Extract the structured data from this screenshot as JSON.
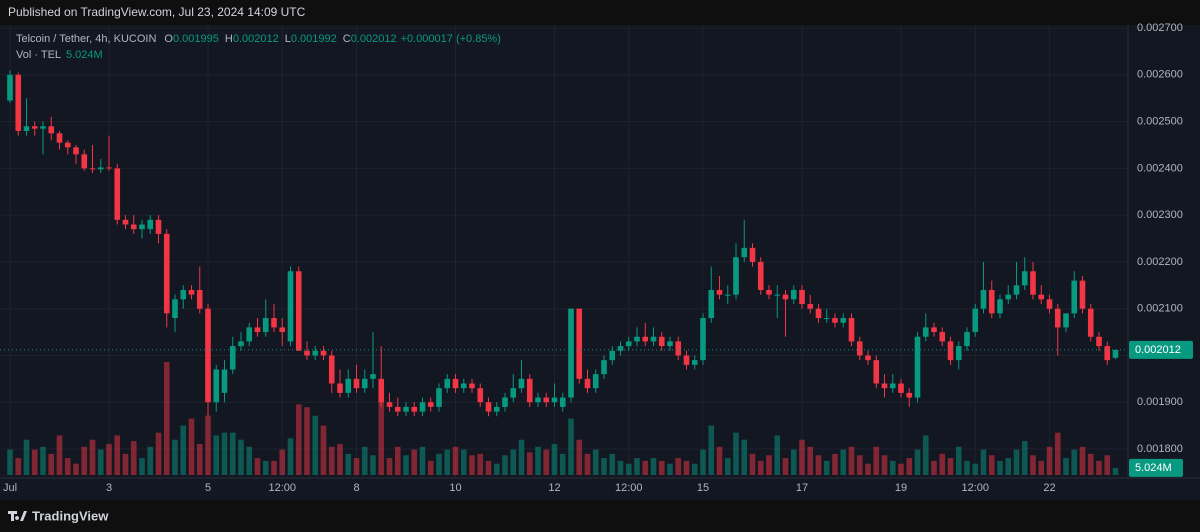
{
  "chart_data": {
    "type": "candlestick",
    "published": "Published on TradingView.com, Jul 23, 2024 14:09 UTC",
    "symbol": "Telcoin / Tether, 4h, KUCOIN",
    "change": "+0.000017 (+0.85%)",
    "volume_title": "Vol · TEL",
    "volume_label": "5.024M",
    "brand": "TradingView",
    "up_color": "#089981",
    "down_color": "#f23645",
    "grid": true,
    "ylim": [
      0.001738,
      0.00276
    ],
    "yticks": [
      {
        "value": 0.0018,
        "label": "0.001800"
      },
      {
        "value": 0.0019,
        "label": "0.001900"
      },
      {
        "value": 0.002,
        "label": "0.002000"
      },
      {
        "value": 0.0021,
        "label": "0.002100"
      },
      {
        "value": 0.0022,
        "label": "0.002200"
      },
      {
        "value": 0.0023,
        "label": "0.002300"
      },
      {
        "value": 0.0024,
        "label": "0.002400"
      },
      {
        "value": 0.0025,
        "label": "0.002500"
      },
      {
        "value": 0.0026,
        "label": "0.002600"
      },
      {
        "value": 0.0027,
        "label": "0.002700"
      }
    ],
    "xticks": [
      {
        "value": 0,
        "label": "Jul"
      },
      {
        "value": 12,
        "label": "3"
      },
      {
        "value": 24,
        "label": "5"
      },
      {
        "value": 33,
        "label": "12:00"
      },
      {
        "value": 42,
        "label": "8"
      },
      {
        "value": 54,
        "label": "10"
      },
      {
        "value": 66,
        "label": "12"
      },
      {
        "value": 75,
        "label": "12:00"
      },
      {
        "value": 84,
        "label": "15"
      },
      {
        "value": 96,
        "label": "17"
      },
      {
        "value": 108,
        "label": "19"
      },
      {
        "value": 117,
        "label": "12:00"
      },
      {
        "value": 126,
        "label": "22"
      }
    ],
    "volume_lim": [
      0,
      85
    ],
    "candles": [
      [
        0.002545,
        0.00261,
        0.00254,
        0.0026
      ],
      [
        0.0026,
        0.002605,
        0.00247,
        0.00248
      ],
      [
        0.00248,
        0.00255,
        0.00247,
        0.00249
      ],
      [
        0.00249,
        0.0025,
        0.00247,
        0.002485
      ],
      [
        0.002485,
        0.0025,
        0.00243,
        0.00249
      ],
      [
        0.00249,
        0.00251,
        0.00246,
        0.002475
      ],
      [
        0.002475,
        0.00248,
        0.00244,
        0.002455
      ],
      [
        0.002455,
        0.00246,
        0.00243,
        0.002445
      ],
      [
        0.002445,
        0.00245,
        0.00241,
        0.00243
      ],
      [
        0.00243,
        0.00244,
        0.002395,
        0.0024
      ],
      [
        0.0024,
        0.00245,
        0.00239,
        0.002398
      ],
      [
        0.002398,
        0.00242,
        0.00239,
        0.002402
      ],
      [
        0.002402,
        0.00247,
        0.002395,
        0.0024
      ],
      [
        0.0024,
        0.00241,
        0.00228,
        0.00229
      ],
      [
        0.00229,
        0.0023,
        0.00227,
        0.00228
      ],
      [
        0.00228,
        0.0023,
        0.00226,
        0.00227
      ],
      [
        0.00227,
        0.00229,
        0.00225,
        0.00228
      ],
      [
        0.00227,
        0.0023,
        0.00226,
        0.00229
      ],
      [
        0.00229,
        0.0023,
        0.00224,
        0.00226
      ],
      [
        0.00226,
        0.00227,
        0.00206,
        0.00209
      ],
      [
        0.00208,
        0.00213,
        0.00205,
        0.00212
      ],
      [
        0.00212,
        0.00215,
        0.0021,
        0.00214
      ],
      [
        0.00214,
        0.00215,
        0.00212,
        0.00213
      ],
      [
        0.00214,
        0.00219,
        0.00209,
        0.0021
      ],
      [
        0.0021,
        0.00211,
        0.00187,
        0.0019
      ],
      [
        0.0019,
        0.00198,
        0.00188,
        0.00197
      ],
      [
        0.00192,
        0.00199,
        0.0019,
        0.00197
      ],
      [
        0.00197,
        0.00204,
        0.00196,
        0.00202
      ],
      [
        0.00202,
        0.00205,
        0.00201,
        0.00203
      ],
      [
        0.00203,
        0.00207,
        0.00202,
        0.00206
      ],
      [
        0.00206,
        0.00208,
        0.00204,
        0.00205
      ],
      [
        0.00205,
        0.00212,
        0.00204,
        0.00208
      ],
      [
        0.00208,
        0.00211,
        0.00205,
        0.00206
      ],
      [
        0.00206,
        0.00208,
        0.00202,
        0.00205
      ],
      [
        0.00203,
        0.00219,
        0.00202,
        0.00218
      ],
      [
        0.00218,
        0.00219,
        0.00201,
        0.00201
      ],
      [
        0.00201,
        0.00203,
        0.00199,
        0.002
      ],
      [
        0.002,
        0.00202,
        0.00199,
        0.00201
      ],
      [
        0.00201,
        0.00202,
        0.00199,
        0.002
      ],
      [
        0.002,
        0.00201,
        0.00192,
        0.00194
      ],
      [
        0.00194,
        0.00197,
        0.00191,
        0.00192
      ],
      [
        0.00192,
        0.00197,
        0.00191,
        0.00195
      ],
      [
        0.00195,
        0.00198,
        0.00192,
        0.00193
      ],
      [
        0.00193,
        0.00197,
        0.00192,
        0.00195
      ],
      [
        0.00195,
        0.00205,
        0.00193,
        0.00196
      ],
      [
        0.00195,
        0.00202,
        0.00189,
        0.0019
      ],
      [
        0.0019,
        0.00192,
        0.00188,
        0.00189
      ],
      [
        0.00189,
        0.00191,
        0.00187,
        0.00188
      ],
      [
        0.00188,
        0.0019,
        0.00187,
        0.00189
      ],
      [
        0.00189,
        0.0019,
        0.00187,
        0.00188
      ],
      [
        0.00188,
        0.00191,
        0.00187,
        0.0019
      ],
      [
        0.0019,
        0.00191,
        0.00188,
        0.00189
      ],
      [
        0.00189,
        0.00194,
        0.00188,
        0.00193
      ],
      [
        0.00193,
        0.00196,
        0.00192,
        0.00195
      ],
      [
        0.00195,
        0.00196,
        0.00192,
        0.00193
      ],
      [
        0.00193,
        0.00195,
        0.00192,
        0.00194
      ],
      [
        0.00194,
        0.00195,
        0.00192,
        0.00193
      ],
      [
        0.00193,
        0.00194,
        0.00189,
        0.0019
      ],
      [
        0.0019,
        0.00191,
        0.00187,
        0.00188
      ],
      [
        0.00188,
        0.0019,
        0.00187,
        0.00189
      ],
      [
        0.00189,
        0.00192,
        0.00188,
        0.00191
      ],
      [
        0.00191,
        0.00196,
        0.0019,
        0.00193
      ],
      [
        0.00193,
        0.00199,
        0.00192,
        0.00195
      ],
      [
        0.00195,
        0.00196,
        0.00189,
        0.0019
      ],
      [
        0.0019,
        0.00192,
        0.00189,
        0.00191
      ],
      [
        0.00191,
        0.00192,
        0.00189,
        0.0019
      ],
      [
        0.0019,
        0.00194,
        0.00189,
        0.00191
      ],
      [
        0.00189,
        0.00192,
        0.00188,
        0.00191
      ],
      [
        0.00191,
        0.0021,
        0.0019,
        0.0021
      ],
      [
        0.0021,
        0.0021,
        0.00194,
        0.00195
      ],
      [
        0.00195,
        0.00197,
        0.00192,
        0.00193
      ],
      [
        0.00193,
        0.00197,
        0.00192,
        0.00196
      ],
      [
        0.00196,
        0.002,
        0.00195,
        0.00199
      ],
      [
        0.00199,
        0.00202,
        0.00198,
        0.00201
      ],
      [
        0.00201,
        0.00203,
        0.002,
        0.00202
      ],
      [
        0.00202,
        0.00204,
        0.00201,
        0.00203
      ],
      [
        0.00203,
        0.00206,
        0.00202,
        0.00204
      ],
      [
        0.00204,
        0.00207,
        0.00202,
        0.00203
      ],
      [
        0.00203,
        0.00206,
        0.00202,
        0.00204
      ],
      [
        0.00204,
        0.00205,
        0.00201,
        0.00202
      ],
      [
        0.00202,
        0.00204,
        0.00201,
        0.00203
      ],
      [
        0.00203,
        0.00204,
        0.00199,
        0.002
      ],
      [
        0.002,
        0.00201,
        0.00197,
        0.00198
      ],
      [
        0.00198,
        0.002,
        0.00197,
        0.00199
      ],
      [
        0.00199,
        0.00209,
        0.00198,
        0.00208
      ],
      [
        0.00208,
        0.00219,
        0.00207,
        0.00214
      ],
      [
        0.00214,
        0.00217,
        0.00212,
        0.00213
      ],
      [
        0.00213,
        0.00215,
        0.00211,
        0.00213
      ],
      [
        0.00213,
        0.00224,
        0.00212,
        0.00221
      ],
      [
        0.00221,
        0.00229,
        0.0022,
        0.00223
      ],
      [
        0.00223,
        0.00224,
        0.00219,
        0.0022
      ],
      [
        0.0022,
        0.00221,
        0.00213,
        0.00214
      ],
      [
        0.00214,
        0.00215,
        0.00212,
        0.00213
      ],
      [
        0.00213,
        0.00215,
        0.00208,
        0.00213
      ],
      [
        0.00213,
        0.00214,
        0.00204,
        0.00212
      ],
      [
        0.00212,
        0.00215,
        0.00211,
        0.00214
      ],
      [
        0.00214,
        0.00215,
        0.0021,
        0.00211
      ],
      [
        0.00211,
        0.00213,
        0.00209,
        0.0021
      ],
      [
        0.0021,
        0.00211,
        0.00207,
        0.00208
      ],
      [
        0.00208,
        0.0021,
        0.00207,
        0.00208
      ],
      [
        0.00208,
        0.00209,
        0.00206,
        0.00207
      ],
      [
        0.00207,
        0.00209,
        0.00206,
        0.00208
      ],
      [
        0.00208,
        0.00209,
        0.00202,
        0.00203
      ],
      [
        0.00203,
        0.00204,
        0.00199,
        0.002
      ],
      [
        0.002,
        0.00201,
        0.00198,
        0.00199
      ],
      [
        0.00199,
        0.002,
        0.00193,
        0.00194
      ],
      [
        0.00194,
        0.00196,
        0.00191,
        0.00193
      ],
      [
        0.00193,
        0.00196,
        0.00192,
        0.00194
      ],
      [
        0.00194,
        0.00195,
        0.00191,
        0.00192
      ],
      [
        0.00192,
        0.00193,
        0.00189,
        0.00191
      ],
      [
        0.00191,
        0.00205,
        0.0019,
        0.00204
      ],
      [
        0.00204,
        0.00209,
        0.00203,
        0.00206
      ],
      [
        0.00206,
        0.00207,
        0.00204,
        0.00205
      ],
      [
        0.00205,
        0.00206,
        0.00202,
        0.00203
      ],
      [
        0.00203,
        0.00204,
        0.00198,
        0.00199
      ],
      [
        0.00199,
        0.00203,
        0.00197,
        0.00202
      ],
      [
        0.00202,
        0.00206,
        0.00201,
        0.00205
      ],
      [
        0.00205,
        0.00211,
        0.00204,
        0.0021
      ],
      [
        0.0021,
        0.0022,
        0.00209,
        0.00214
      ],
      [
        0.00214,
        0.00216,
        0.00208,
        0.00209
      ],
      [
        0.00209,
        0.00213,
        0.00208,
        0.00212
      ],
      [
        0.00212,
        0.00215,
        0.00211,
        0.00213
      ],
      [
        0.00213,
        0.0022,
        0.00212,
        0.00215
      ],
      [
        0.00215,
        0.00221,
        0.00214,
        0.00218
      ],
      [
        0.00218,
        0.0022,
        0.00212,
        0.00213
      ],
      [
        0.00213,
        0.00215,
        0.00211,
        0.00212
      ],
      [
        0.00212,
        0.00213,
        0.00209,
        0.0021
      ],
      [
        0.0021,
        0.00211,
        0.002,
        0.00206
      ],
      [
        0.00206,
        0.00209,
        0.00205,
        0.00209
      ],
      [
        0.00209,
        0.00218,
        0.00208,
        0.00216
      ],
      [
        0.00216,
        0.00217,
        0.00209,
        0.0021
      ],
      [
        0.0021,
        0.00211,
        0.00203,
        0.00204
      ],
      [
        0.00204,
        0.00205,
        0.00201,
        0.00202
      ],
      [
        0.00202,
        0.00203,
        0.00198,
        0.00199
      ],
      [
        0.001995,
        0.002012,
        0.001992,
        0.002012
      ]
    ],
    "volumes": [
      18,
      12,
      25,
      18,
      20,
      15,
      28,
      12,
      8,
      20,
      25,
      18,
      22,
      28,
      15,
      24,
      12,
      20,
      30,
      80,
      25,
      35,
      40,
      22,
      42,
      28,
      30,
      30,
      25,
      20,
      12,
      10,
      10,
      18,
      26,
      50,
      48,
      42,
      35,
      20,
      22,
      15,
      12,
      20,
      14,
      55,
      12,
      20,
      14,
      18,
      20,
      10,
      15,
      18,
      20,
      18,
      14,
      15,
      10,
      8,
      14,
      18,
      25,
      16,
      20,
      18,
      22,
      15,
      40,
      25,
      15,
      18,
      12,
      15,
      10,
      8,
      12,
      10,
      12,
      10,
      8,
      12,
      10,
      8,
      18,
      35,
      20,
      12,
      30,
      25,
      15,
      10,
      14,
      28,
      12,
      18,
      25,
      20,
      14,
      10,
      15,
      18,
      20,
      14,
      8,
      20,
      14,
      10,
      8,
      12,
      18,
      28,
      10,
      15,
      12,
      20,
      10,
      8,
      18,
      14,
      10,
      12,
      18,
      24,
      14,
      10,
      20,
      30,
      12,
      18,
      20,
      15,
      10,
      14,
      5.024
    ]
  }
}
